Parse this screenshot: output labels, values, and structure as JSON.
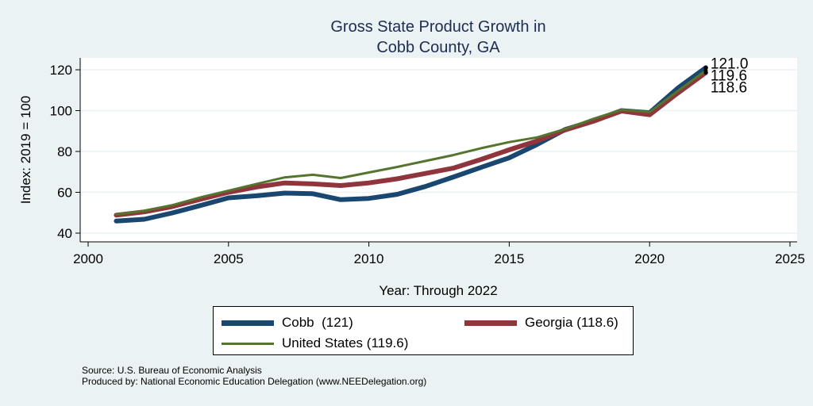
{
  "chart_data": {
    "type": "line",
    "title": [
      "Gross State Product Growth in",
      "Cobb County, GA"
    ],
    "xlabel": "Year: Through 2022",
    "ylabel": "Index: 2019 = 100",
    "xlim": [
      2000,
      2025
    ],
    "ylim": [
      40,
      120
    ],
    "xticks": [
      2000,
      2005,
      2010,
      2015,
      2020,
      2025
    ],
    "yticks": [
      40,
      60,
      80,
      100,
      120
    ],
    "grid": true,
    "legend_position": "bottom",
    "x": [
      2001,
      2002,
      2003,
      2004,
      2005,
      2006,
      2007,
      2008,
      2009,
      2010,
      2011,
      2012,
      2013,
      2014,
      2015,
      2016,
      2017,
      2018,
      2019,
      2020,
      2021,
      2022
    ],
    "series": [
      {
        "name": "Cobb",
        "legend_label": "Cobb  (121)",
        "color": "#1a476f",
        "values": [
          45.9,
          46.8,
          49.9,
          53.5,
          57.3,
          58.3,
          59.6,
          59.3,
          56.4,
          57.0,
          59.0,
          62.8,
          67.4,
          72.2,
          76.9,
          83.5,
          90.8,
          95.0,
          100.0,
          99.0,
          111.0,
          121.0
        ],
        "end_label": "121.0"
      },
      {
        "name": "Georgia",
        "legend_label": "Georgia (118.6)",
        "color": "#90353b",
        "values": [
          48.8,
          50.4,
          53.0,
          56.6,
          60.0,
          62.6,
          64.6,
          64.1,
          63.3,
          64.6,
          66.6,
          69.2,
          71.8,
          76.1,
          80.8,
          85.2,
          90.6,
          94.8,
          99.8,
          98.0,
          108.6,
          118.6
        ],
        "end_label": "118.6"
      },
      {
        "name": "United States",
        "legend_label": "United States (119.6)",
        "color": "#55752f",
        "values": [
          49.2,
          50.9,
          53.7,
          57.5,
          60.8,
          64.1,
          67.3,
          68.6,
          67.0,
          69.7,
          72.4,
          75.3,
          78.2,
          81.6,
          84.6,
          86.9,
          91.0,
          96.0,
          100.4,
          99.3,
          109.6,
          119.6
        ],
        "end_label": "119.6"
      }
    ]
  },
  "footer": {
    "source": "Source: U.S. Bureau of Economic Analysis",
    "produced_by": "Produced by: National Economic Education Delegation (www.NEEDelegation.org)"
  }
}
